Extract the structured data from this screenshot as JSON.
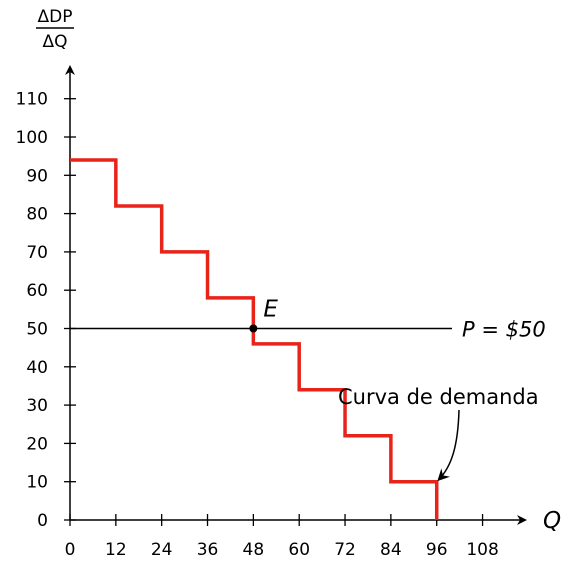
{
  "chart_data": {
    "type": "line",
    "ylabel_top": "ΔDP",
    "ylabel_bottom": "ΔQ",
    "xlabel": "Q",
    "x_ticks": [
      "0",
      "12",
      "24",
      "36",
      "48",
      "60",
      "72",
      "84",
      "96",
      "108"
    ],
    "y_ticks": [
      "0",
      "10",
      "20",
      "30",
      "40",
      "50",
      "60",
      "70",
      "80",
      "90",
      "100",
      "110"
    ],
    "xlim": [
      0,
      120
    ],
    "ylim": [
      0,
      120
    ],
    "series": [
      {
        "name": "Curva de demanda",
        "color": "#e8231a",
        "steps": [
          {
            "x0": 0,
            "x1": 12,
            "y": 94
          },
          {
            "x0": 12,
            "x1": 24,
            "y": 82
          },
          {
            "x0": 24,
            "x1": 36,
            "y": 70
          },
          {
            "x0": 36,
            "x1": 48,
            "y": 58
          },
          {
            "x0": 48,
            "x1": 60,
            "y": 46
          },
          {
            "x0": 60,
            "x1": 72,
            "y": 34
          },
          {
            "x0": 72,
            "x1": 84,
            "y": 22
          },
          {
            "x0": 84,
            "x1": 96,
            "y": 10
          }
        ],
        "end_drop_to": 0
      }
    ],
    "price_line": {
      "y": 50,
      "x0": 0,
      "x1": 100,
      "label": "P = $50"
    },
    "equilibrium": {
      "x": 48,
      "y": 50,
      "label": "E"
    },
    "demand_label": {
      "text": "Curva de demanda",
      "points_to": {
        "x": 96,
        "y": 10
      }
    }
  }
}
